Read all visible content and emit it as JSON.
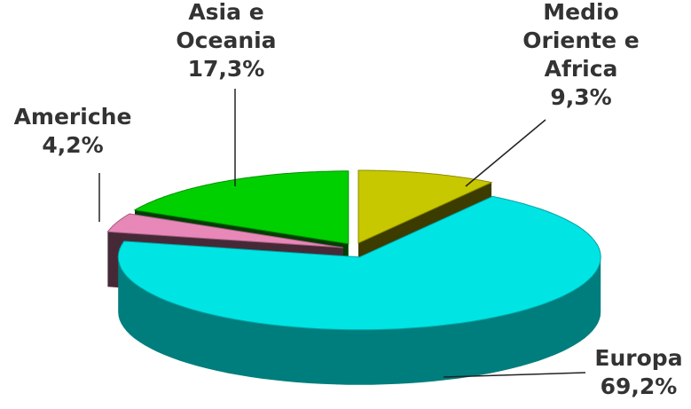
{
  "chart_data": {
    "type": "pie3d",
    "categories": [
      "Medio Oriente e Africa",
      "Europa",
      "Americhe",
      "Asia e Oceania"
    ],
    "values": [
      9.3,
      69.2,
      4.2,
      17.3
    ],
    "value_labels": [
      "9,3%",
      "69,2%",
      "4,2%",
      "17,3%"
    ],
    "colors": [
      "#c8c800",
      "#00e4e4",
      "#e888b8",
      "#00d000"
    ]
  }
}
